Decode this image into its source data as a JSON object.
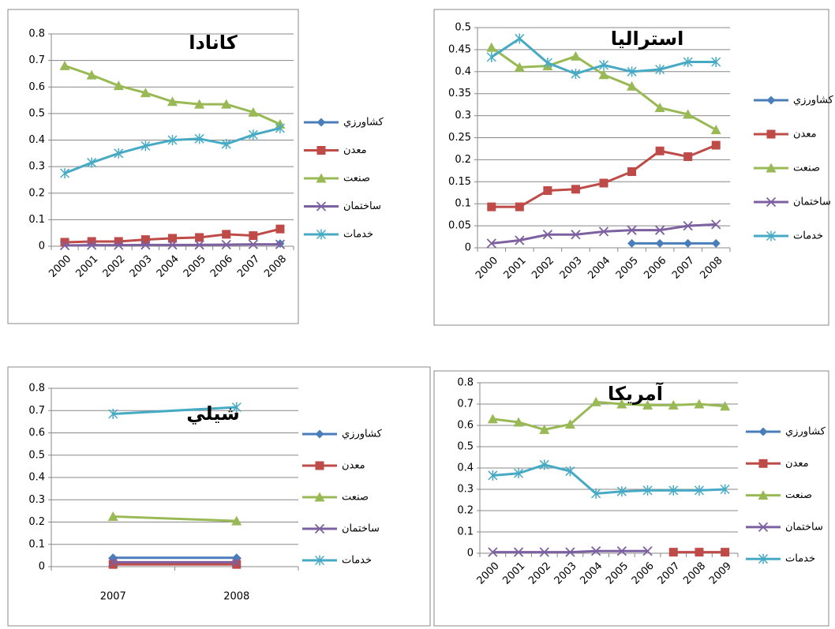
{
  "chart_data": [
    {
      "type": "line",
      "title": "كانادا",
      "categories": [
        "2000",
        "2001",
        "2002",
        "2003",
        "2004",
        "2005",
        "2006",
        "2007",
        "2008"
      ],
      "ylim": [
        0,
        0.8
      ],
      "yticks": [
        0,
        0.1,
        0.2,
        0.3,
        0.4,
        0.5,
        0.6,
        0.7,
        0.8
      ],
      "grid": true,
      "series": [
        {
          "name": "كشاورزي",
          "color": "#4a7ebb",
          "marker": "diamond",
          "values": [
            null,
            null,
            null,
            null,
            null,
            null,
            null,
            null,
            0.01
          ]
        },
        {
          "name": "معدن",
          "color": "#be4b48",
          "marker": "square",
          "values": [
            0.015,
            0.018,
            0.018,
            0.025,
            0.03,
            0.033,
            0.045,
            0.04,
            0.065
          ]
        },
        {
          "name": "صنعت",
          "color": "#98b954",
          "marker": "triangle",
          "values": [
            0.68,
            0.645,
            0.605,
            0.578,
            0.545,
            0.535,
            0.535,
            0.505,
            0.46
          ]
        },
        {
          "name": "ساختمان",
          "color": "#7d60a0",
          "marker": "x",
          "values": [
            0.003,
            0.004,
            0.004,
            0.005,
            0.005,
            0.005,
            0.006,
            0.007,
            0.007
          ]
        },
        {
          "name": "خدمات",
          "color": "#46aac5",
          "marker": "star",
          "values": [
            0.275,
            0.315,
            0.35,
            0.378,
            0.4,
            0.405,
            0.385,
            0.42,
            0.445
          ]
        }
      ]
    },
    {
      "type": "line",
      "title": "استراليا",
      "categories": [
        "2000",
        "2001",
        "2002",
        "2003",
        "2004",
        "2005",
        "2006",
        "2007",
        "2008"
      ],
      "ylim": [
        0,
        0.5
      ],
      "yticks": [
        0,
        0.05,
        0.1,
        0.15,
        0.2,
        0.25,
        0.3,
        0.35,
        0.4,
        0.45,
        0.5
      ],
      "grid": true,
      "series": [
        {
          "name": "كشاورزي",
          "color": "#4a7ebb",
          "marker": "diamond",
          "values": [
            null,
            null,
            null,
            null,
            null,
            0.01,
            0.01,
            0.01,
            0.01
          ]
        },
        {
          "name": "معدن",
          "color": "#be4b48",
          "marker": "square",
          "values": [
            0.093,
            0.093,
            0.13,
            0.133,
            0.147,
            0.173,
            0.22,
            0.207,
            0.233
          ]
        },
        {
          "name": "صنعت",
          "color": "#98b954",
          "marker": "triangle",
          "values": [
            0.455,
            0.41,
            0.413,
            0.435,
            0.393,
            0.367,
            0.318,
            0.303,
            0.268
          ]
        },
        {
          "name": "ساختمان",
          "color": "#7d60a0",
          "marker": "x",
          "values": [
            0.01,
            0.017,
            0.03,
            0.03,
            0.037,
            0.04,
            0.04,
            0.05,
            0.053
          ]
        },
        {
          "name": "خدمات",
          "color": "#46aac5",
          "marker": "star",
          "values": [
            0.433,
            0.475,
            0.42,
            0.395,
            0.415,
            0.4,
            0.405,
            0.422,
            0.422
          ]
        }
      ]
    },
    {
      "type": "line",
      "title": "شيلي",
      "categories": [
        "2007",
        "2008"
      ],
      "ylim": [
        0,
        0.8
      ],
      "yticks": [
        0,
        0.1,
        0.2,
        0.3,
        0.4,
        0.5,
        0.6,
        0.7,
        0.8
      ],
      "grid": true,
      "series": [
        {
          "name": "كشاورزي",
          "color": "#4a7ebb",
          "marker": "diamond",
          "values": [
            0.04,
            0.04
          ]
        },
        {
          "name": "معدن",
          "color": "#be4b48",
          "marker": "square",
          "values": [
            0.01,
            0.01
          ]
        },
        {
          "name": "صنعت",
          "color": "#98b954",
          "marker": "triangle",
          "values": [
            0.225,
            0.205
          ]
        },
        {
          "name": "ساختمان",
          "color": "#7d60a0",
          "marker": "x",
          "values": [
            0.02,
            0.02
          ]
        },
        {
          "name": "خدمات",
          "color": "#46aac5",
          "marker": "star",
          "values": [
            0.685,
            0.715
          ]
        }
      ]
    },
    {
      "type": "line",
      "title": "آمريكا",
      "categories": [
        "2000",
        "2001",
        "2002",
        "2003",
        "2004",
        "2005",
        "2006",
        "2007",
        "2008",
        "2009"
      ],
      "ylim": [
        0,
        0.8
      ],
      "yticks": [
        0,
        0.1,
        0.2,
        0.3,
        0.4,
        0.5,
        0.6,
        0.7,
        0.8
      ],
      "grid": true,
      "series": [
        {
          "name": "كشاورزي",
          "color": "#4a7ebb",
          "marker": "diamond",
          "values": [
            null,
            null,
            null,
            null,
            null,
            null,
            null,
            null,
            null,
            null
          ]
        },
        {
          "name": "معدن",
          "color": "#be4b48",
          "marker": "square",
          "values": [
            null,
            null,
            null,
            null,
            null,
            null,
            null,
            0.005,
            0.005,
            0.005
          ]
        },
        {
          "name": "صنعت",
          "color": "#98b954",
          "marker": "triangle",
          "values": [
            0.63,
            0.615,
            0.58,
            0.605,
            0.71,
            0.7,
            0.695,
            0.695,
            0.7,
            0.69
          ]
        },
        {
          "name": "ساختمان",
          "color": "#7d60a0",
          "marker": "x",
          "values": [
            0.005,
            0.005,
            0.005,
            0.005,
            0.01,
            0.01,
            0.01,
            null,
            null,
            null
          ]
        },
        {
          "name": "خدمات",
          "color": "#46aac5",
          "marker": "star",
          "values": [
            0.365,
            0.375,
            0.415,
            0.385,
            0.28,
            0.29,
            0.295,
            0.295,
            0.295,
            0.3
          ]
        }
      ]
    }
  ]
}
